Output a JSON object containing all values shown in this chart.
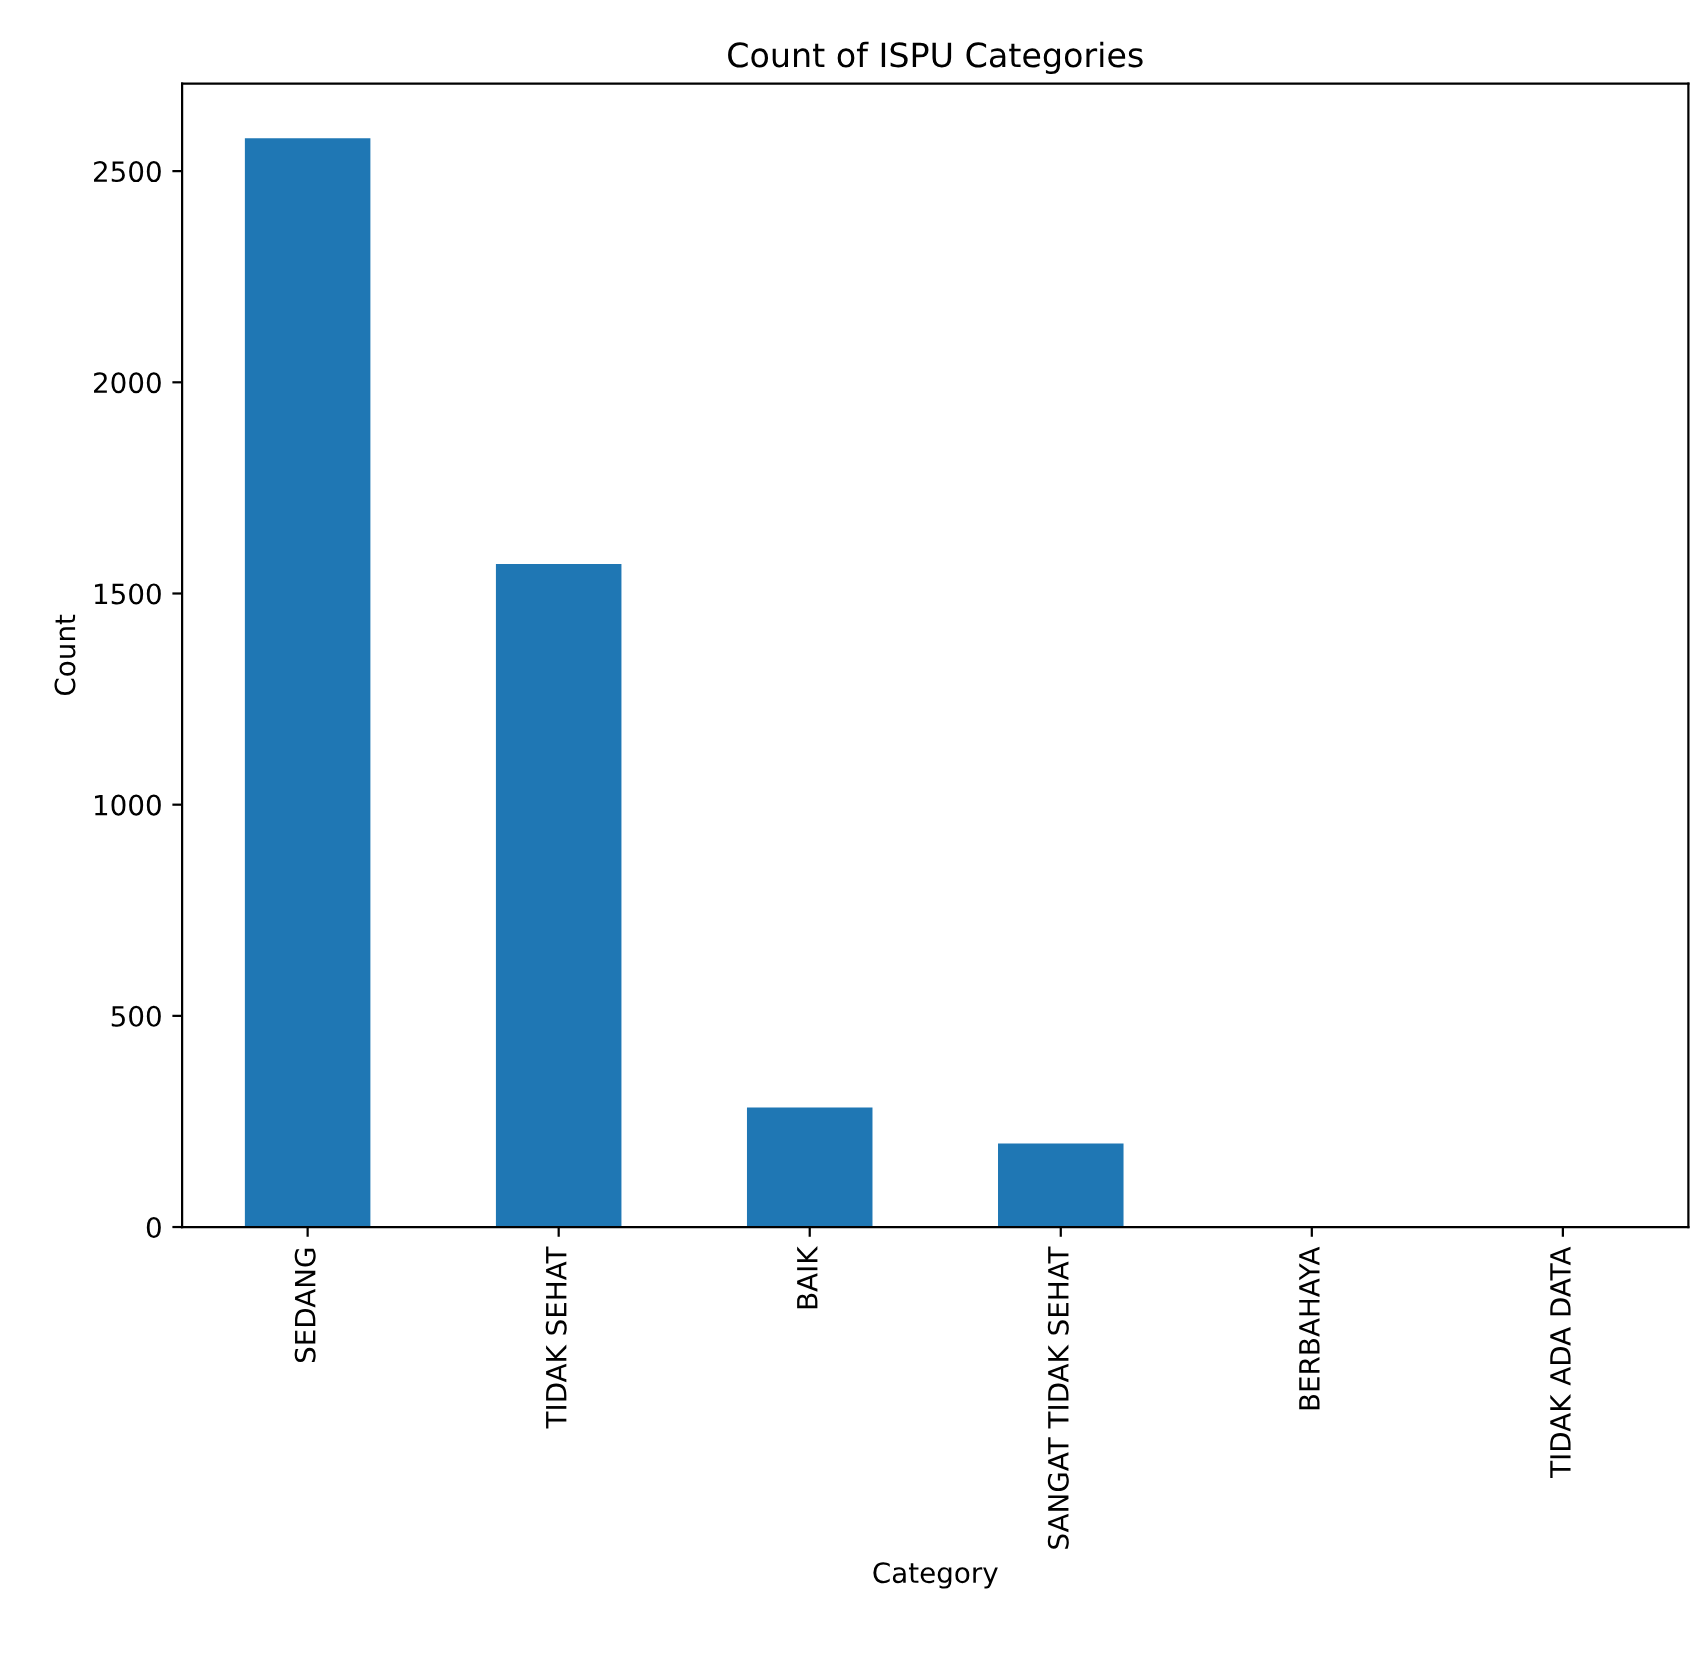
{
  "chart_data": {
    "type": "bar",
    "title": "Count of ISPU Categories",
    "xlabel": "Category",
    "ylabel": "Count",
    "categories": [
      "SEDANG",
      "TIDAK SEHAT",
      "BAIK",
      "SANGAT TIDAK SEHAT",
      "BERBAHAYA",
      "TIDAK ADA DATA"
    ],
    "values": [
      2578,
      1570,
      283,
      198,
      0,
      0
    ],
    "color": "#1f77b4",
    "ylim": [
      0,
      2707
    ],
    "yticks": [
      0,
      500,
      1000,
      1500,
      2000,
      2500
    ],
    "grid": false,
    "legend": false
  }
}
